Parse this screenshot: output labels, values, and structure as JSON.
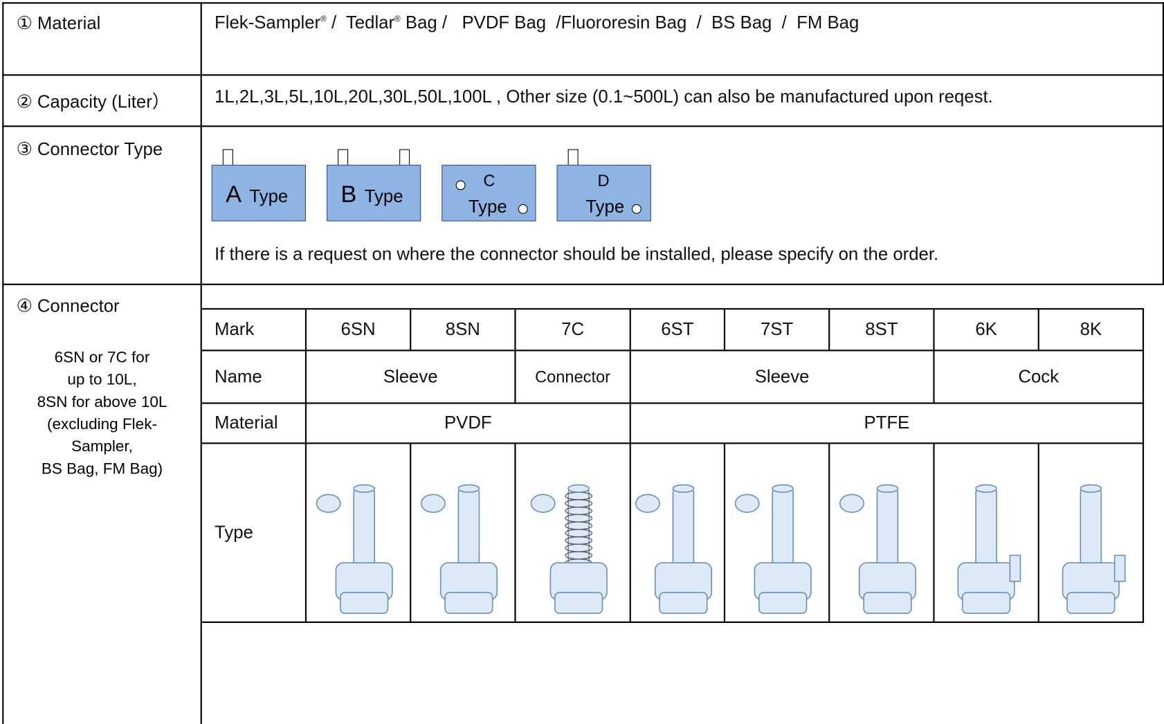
{
  "rows": {
    "material": {
      "label": "① Material",
      "parts": [
        "Flek-Sampler",
        "®",
        " /  Tedlar",
        "®",
        " Bag /   PVDF Bag  /Fluororesin Bag  /  BS Bag  /  FM Bag"
      ]
    },
    "capacity": {
      "label": "② Capacity (Liter）",
      "text": "1L,2L,3L,5L,10L,20L,30L,50L,100L , Other size (0.1~500L) can also be manufactured upon reqest."
    },
    "connector_type": {
      "label": "③ Connector Type",
      "types": [
        {
          "letter": "A",
          "word": "Type"
        },
        {
          "letter": "B",
          "word": "Type"
        },
        {
          "letter": "C",
          "word": "Type"
        },
        {
          "letter": "D",
          "word": "Type"
        }
      ],
      "note": "If there is a request on where the connector should be installed, please specify on the order."
    },
    "connector": {
      "label": "④ Connector",
      "note": [
        "6SN or 7C for",
        "up to 10L,",
        "8SN for above 10L",
        "(excluding Flek-",
        "Sampler,",
        "BS Bag, FM Bag)"
      ],
      "table": {
        "row_labels": [
          "Mark",
          "Name",
          "Material",
          "Type"
        ],
        "marks": [
          "6SN",
          "8SN",
          "7C",
          "6ST",
          "7ST",
          "8ST",
          "6K",
          "8K"
        ],
        "names": [
          "Sleeve",
          "Connector",
          "Sleeve",
          "Cock"
        ],
        "materials": [
          "PVDF",
          "PTFE"
        ]
      }
    }
  }
}
